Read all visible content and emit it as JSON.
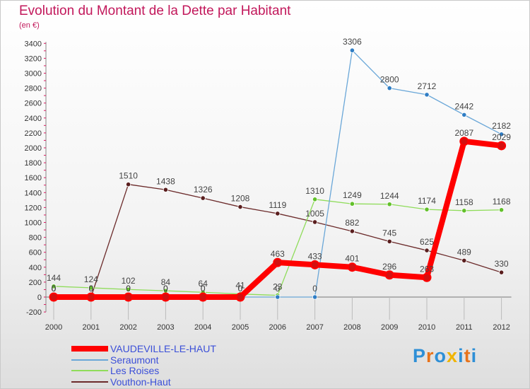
{
  "title": "Evolution du Montant de la Dette par Habitant",
  "unit_label": "(en €)",
  "logo": {
    "text": "Proxiti",
    "letter_colors": [
      "#2e8fd6",
      "#e8731a",
      "#2e8fd6",
      "#f0b400",
      "#2e8fd6",
      "#e8731a",
      "#2e8fd6"
    ]
  },
  "chart_data": {
    "type": "line",
    "title": "Evolution du Montant de la Dette par Habitant",
    "ylabel": "(en €)",
    "xlabel": "",
    "x": [
      "2000",
      "2001",
      "2002",
      "2003",
      "2004",
      "2005",
      "2006",
      "2007",
      "2008",
      "2009",
      "2010",
      "2011",
      "2012"
    ],
    "y_ticks": [
      -200,
      0,
      200,
      400,
      600,
      800,
      1000,
      1200,
      1400,
      1600,
      1800,
      2000,
      2200,
      2400,
      2600,
      2800,
      3000,
      3200,
      3400
    ],
    "ylim": [
      -200,
      3400
    ],
    "grid": false,
    "legend_position": "bottom-left",
    "series": [
      {
        "name": "VAUDEVILLE-LE-HAUT",
        "color": "#ff0000",
        "marker": "#d41010",
        "values": [
          0,
          0,
          0,
          0,
          0,
          0,
          463,
          433,
          401,
          296,
          263,
          2087,
          2029
        ],
        "labels": [
          "0",
          "0",
          "0",
          "0",
          "0",
          "0",
          "463",
          "433",
          "401",
          "296",
          "263",
          "2087",
          "2029"
        ]
      },
      {
        "name": "Seraumont",
        "color": "#6aa7d8",
        "marker": "#2f7dc4",
        "values": [
          0,
          0,
          0,
          0,
          0,
          0,
          0,
          0,
          3306,
          2800,
          2712,
          2442,
          2182
        ],
        "labels": [
          "0",
          "0",
          "0",
          "0",
          "0",
          "0",
          "0",
          "0",
          "3306",
          "2800",
          "2712",
          "2442",
          "2182"
        ]
      },
      {
        "name": "Les Roises",
        "color": "#8fdc5a",
        "marker": "#62c02a",
        "values": [
          144,
          124,
          102,
          84,
          64,
          41,
          23,
          1310,
          1249,
          1244,
          1174,
          1158,
          1168
        ],
        "labels": [
          "144",
          "124",
          "102",
          "84",
          "64",
          "41",
          "23",
          "1310",
          "1249",
          "1244",
          "1174",
          "1158",
          "1168"
        ]
      },
      {
        "name": "Vouthon-Haut",
        "color": "#6b2a2a",
        "marker": "#5a1e1e",
        "values": [
          0,
          0,
          1510,
          1438,
          1326,
          1208,
          1119,
          1005,
          882,
          745,
          625,
          489,
          330
        ],
        "labels": [
          "0",
          "0",
          "1510",
          "1438",
          "1326",
          "1208",
          "1119",
          "1005",
          "882",
          "745",
          "625",
          "489",
          "330"
        ]
      }
    ]
  }
}
